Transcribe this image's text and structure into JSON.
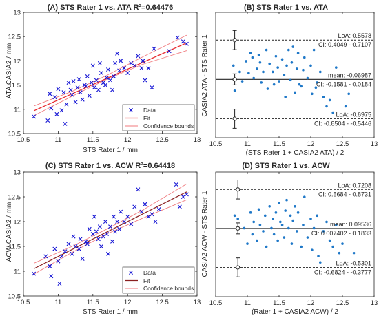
{
  "chart_data": [
    {
      "id": "A",
      "type": "scatter",
      "title": "(A) STS Rater 1 vs. ATA R²=0.64476",
      "xlabel": "STS Rater 1 / mm",
      "ylabel": "ATA CASIA2 / mm",
      "xlim": [
        10.5,
        13
      ],
      "ylim": [
        10.5,
        13
      ],
      "xticks": [
        "10.5",
        "11",
        "11.5",
        "12",
        "12.5",
        "13"
      ],
      "yticks": [
        "10.5",
        "11",
        "11.5",
        "12",
        "12.5",
        "13"
      ],
      "legend": {
        "position": "bottom-right",
        "entries": [
          "Data",
          "Fit",
          "Confidence bounds"
        ]
      },
      "colors": {
        "data": "#1414d4",
        "fit": "#e8252a",
        "bounds": "#f07a7e"
      },
      "fit": {
        "x": [
          10.65,
          12.85
        ],
        "y": [
          10.97,
          12.37
        ]
      },
      "bounds_upper": {
        "x": [
          10.65,
          11.2,
          11.7,
          12.2,
          12.85
        ],
        "y": [
          11.07,
          11.37,
          11.7,
          12.07,
          12.53
        ]
      },
      "bounds_lower": {
        "x": [
          10.65,
          11.2,
          11.7,
          12.2,
          12.85
        ],
        "y": [
          10.87,
          11.27,
          11.62,
          11.92,
          12.21
        ]
      },
      "points": [
        [
          10.65,
          10.85
        ],
        [
          10.85,
          10.77
        ],
        [
          10.88,
          11.32
        ],
        [
          10.9,
          11.02
        ],
        [
          10.95,
          11.25
        ],
        [
          10.98,
          10.9
        ],
        [
          11.0,
          11.42
        ],
        [
          11.05,
          10.98
        ],
        [
          11.08,
          11.35
        ],
        [
          11.1,
          10.7
        ],
        [
          11.12,
          11.1
        ],
        [
          11.15,
          11.55
        ],
        [
          11.18,
          11.4
        ],
        [
          11.2,
          11.3
        ],
        [
          11.22,
          11.58
        ],
        [
          11.25,
          11.15
        ],
        [
          11.28,
          11.45
        ],
        [
          11.3,
          11.62
        ],
        [
          11.32,
          11.35
        ],
        [
          11.35,
          11.2
        ],
        [
          11.38,
          11.5
        ],
        [
          11.4,
          11.48
        ],
        [
          11.42,
          11.68
        ],
        [
          11.45,
          11.28
        ],
        [
          11.48,
          11.55
        ],
        [
          11.5,
          11.9
        ],
        [
          11.52,
          11.45
        ],
        [
          11.55,
          11.6
        ],
        [
          11.58,
          11.4
        ],
        [
          11.6,
          11.95
        ],
        [
          11.62,
          11.75
        ],
        [
          11.65,
          11.55
        ],
        [
          11.68,
          11.5
        ],
        [
          11.7,
          11.65
        ],
        [
          11.72,
          11.82
        ],
        [
          11.75,
          11.6
        ],
        [
          11.78,
          11.4
        ],
        [
          11.8,
          11.68
        ],
        [
          11.82,
          11.95
        ],
        [
          11.85,
          12.15
        ],
        [
          11.88,
          11.8
        ],
        [
          11.9,
          12.0
        ],
        [
          11.95,
          11.85
        ],
        [
          12.0,
          11.75
        ],
        [
          12.05,
          11.95
        ],
        [
          12.1,
          11.9
        ],
        [
          12.15,
          12.1
        ],
        [
          12.2,
          11.85
        ],
        [
          12.22,
          12.0
        ],
        [
          12.25,
          11.6
        ],
        [
          12.3,
          11.85
        ],
        [
          12.35,
          11.45
        ],
        [
          12.38,
          12.25
        ],
        [
          12.6,
          12.2
        ],
        [
          12.72,
          12.48
        ],
        [
          12.8,
          12.4
        ],
        [
          12.85,
          12.35
        ]
      ]
    },
    {
      "id": "B",
      "type": "scatter",
      "title": "(B) STS Rater 1 vs. ATA",
      "xlabel": "(STS Rater 1 + CASIA2 ATA) / 2",
      "ylabel": "CASIA2 ATA - STS Rater 1",
      "xlim": [
        10.5,
        13
      ],
      "ylim": [
        -1,
        1
      ],
      "xticks": [
        "10.5",
        "11",
        "11.5",
        "12",
        "12.5",
        "13"
      ],
      "yticks": [],
      "colors": {
        "data": "#1f78c8",
        "line": "#222222"
      },
      "mean": {
        "value": -0.06987,
        "label": "mean: -0.06987",
        "ci_label": "CI: -0.1581 - 0.0184",
        "ci": [
          -0.1581,
          0.0184
        ]
      },
      "upper_loa": {
        "value": 0.5578,
        "label": "LoA: 0.5578",
        "ci_label": "CI: 0.4049 - 0.7107",
        "ci": [
          0.4049,
          0.7107
        ]
      },
      "lower_loa": {
        "value": -0.6975,
        "label": "LoA: -0.6975",
        "ci_label": "CI: -0.8504 - -0.5446",
        "ci": [
          -0.8504,
          -0.5446
        ]
      },
      "errorbar_x": 10.8,
      "points": [
        [
          10.78,
          0.15
        ],
        [
          10.8,
          -0.25
        ],
        [
          10.88,
          0.05
        ],
        [
          10.92,
          -0.1
        ],
        [
          10.98,
          0.22
        ],
        [
          11.02,
          0.03
        ],
        [
          11.05,
          0.35
        ],
        [
          11.08,
          0.28
        ],
        [
          11.1,
          -0.05
        ],
        [
          11.15,
          0.1
        ],
        [
          11.18,
          0.32
        ],
        [
          11.2,
          0.2
        ],
        [
          11.22,
          -0.12
        ],
        [
          11.25,
          0.05
        ],
        [
          11.3,
          0.4
        ],
        [
          11.32,
          -0.22
        ],
        [
          11.35,
          0.18
        ],
        [
          11.4,
          0.05
        ],
        [
          11.42,
          -0.15
        ],
        [
          11.45,
          0.3
        ],
        [
          11.48,
          0.12
        ],
        [
          11.5,
          -0.1
        ],
        [
          11.55,
          0.25
        ],
        [
          11.58,
          0.0
        ],
        [
          11.6,
          -0.35
        ],
        [
          11.62,
          0.15
        ],
        [
          11.65,
          0.4
        ],
        [
          11.68,
          -0.08
        ],
        [
          11.7,
          0.2
        ],
        [
          11.72,
          0.45
        ],
        [
          11.75,
          -0.28
        ],
        [
          11.78,
          0.1
        ],
        [
          11.8,
          0.35
        ],
        [
          11.82,
          -0.15
        ],
        [
          11.85,
          -0.18
        ],
        [
          11.88,
          0.08
        ],
        [
          11.9,
          0.28
        ],
        [
          11.95,
          -0.05
        ],
        [
          12.0,
          0.15
        ],
        [
          12.02,
          -0.3
        ],
        [
          12.05,
          0.4
        ],
        [
          12.08,
          -0.2
        ],
        [
          12.1,
          -0.12
        ],
        [
          12.15,
          0.05
        ],
        [
          12.2,
          -0.35
        ],
        [
          12.25,
          -0.5
        ],
        [
          12.3,
          -0.4
        ],
        [
          12.35,
          -0.6
        ],
        [
          12.4,
          0.12
        ],
        [
          12.55,
          -0.5
        ],
        [
          12.6,
          -0.3
        ]
      ]
    },
    {
      "id": "C",
      "type": "scatter",
      "title": "(C) STS Rater 1 vs. ACW R²=0.64418",
      "xlabel": "STS Rater 1 / mm",
      "ylabel": "ACW CASIA2 / mm",
      "xlim": [
        10.5,
        13
      ],
      "ylim": [
        10.5,
        13
      ],
      "xticks": [
        "10.5",
        "11",
        "11.5",
        "12",
        "12.5",
        "13"
      ],
      "yticks": [
        "10.5",
        "11",
        "11.5",
        "12",
        "12.5",
        "13"
      ],
      "legend": {
        "position": "bottom-right",
        "entries": [
          "Data",
          "Fit",
          "Confidence bounds"
        ]
      },
      "colors": {
        "data": "#1414d4",
        "fit": "#8b2020",
        "bounds": "#f07a7e"
      },
      "fit": {
        "x": [
          10.65,
          12.85
        ],
        "y": [
          11.05,
          12.6
        ]
      },
      "bounds_upper": {
        "x": [
          10.65,
          11.2,
          11.7,
          12.2,
          12.85
        ],
        "y": [
          11.16,
          11.5,
          11.85,
          12.22,
          12.76
        ]
      },
      "bounds_lower": {
        "x": [
          10.65,
          11.2,
          11.7,
          12.2,
          12.85
        ],
        "y": [
          10.94,
          11.38,
          11.75,
          12.06,
          12.44
        ]
      },
      "points": [
        [
          10.65,
          10.95
        ],
        [
          10.82,
          11.3
        ],
        [
          10.88,
          11.1
        ],
        [
          10.9,
          10.9
        ],
        [
          10.95,
          11.45
        ],
        [
          11.0,
          11.2
        ],
        [
          11.02,
          10.75
        ],
        [
          11.05,
          11.3
        ],
        [
          11.1,
          11.4
        ],
        [
          11.15,
          11.55
        ],
        [
          11.2,
          11.35
        ],
        [
          11.22,
          11.7
        ],
        [
          11.25,
          11.5
        ],
        [
          11.3,
          11.45
        ],
        [
          11.32,
          11.65
        ],
        [
          11.35,
          11.25
        ],
        [
          11.4,
          11.6
        ],
        [
          11.42,
          11.55
        ],
        [
          11.45,
          11.85
        ],
        [
          11.5,
          11.75
        ],
        [
          11.52,
          12.1
        ],
        [
          11.55,
          11.8
        ],
        [
          11.58,
          11.65
        ],
        [
          11.6,
          11.9
        ],
        [
          11.62,
          11.5
        ],
        [
          11.65,
          11.7
        ],
        [
          11.68,
          12.0
        ],
        [
          11.7,
          11.75
        ],
        [
          11.72,
          11.35
        ],
        [
          11.75,
          11.9
        ],
        [
          11.78,
          11.6
        ],
        [
          11.8,
          12.1
        ],
        [
          11.82,
          11.8
        ],
        [
          11.85,
          12.0
        ],
        [
          11.88,
          11.85
        ],
        [
          11.9,
          12.2
        ],
        [
          11.95,
          12.0
        ],
        [
          12.0,
          12.1
        ],
        [
          12.05,
          11.95
        ],
        [
          12.1,
          12.3
        ],
        [
          12.15,
          12.65
        ],
        [
          12.2,
          12.2
        ],
        [
          12.25,
          12.35
        ],
        [
          12.3,
          12.1
        ],
        [
          12.35,
          12.15
        ],
        [
          12.4,
          12.0
        ],
        [
          12.45,
          12.25
        ],
        [
          12.7,
          12.75
        ],
        [
          12.75,
          12.3
        ],
        [
          12.8,
          12.5
        ],
        [
          12.85,
          12.55
        ]
      ]
    },
    {
      "id": "D",
      "type": "scatter",
      "title": "(D) STS Rater 1 vs. ACW",
      "xlabel": "(Rater 1 + CASIA2 ACW) / 2",
      "ylabel": "CASIA2 ACW - STS Rater 1",
      "xlim": [
        10.5,
        13
      ],
      "ylim": [
        -1,
        1
      ],
      "xticks": [
        "10.5",
        "11",
        "11.5",
        "12",
        "12.5",
        "13"
      ],
      "yticks": [],
      "colors": {
        "data": "#1f78c8",
        "line": "#222222"
      },
      "mean": {
        "value": 0.09536,
        "label": "mean: 0.09536",
        "ci_label": "CI: 0.007402 - 0.1833",
        "ci": [
          0.007402,
          0.1833
        ]
      },
      "upper_loa": {
        "value": 0.7208,
        "label": "LoA: 0.7208",
        "ci_label": "CI: 0.5684 - 0.8731",
        "ci": [
          0.5684,
          0.8731
        ]
      },
      "lower_loa": {
        "value": -0.5301,
        "label": "LoA: -0.5301",
        "ci_label": "CI: -0.6824 - -0.3777",
        "ci": [
          -0.6824,
          -0.3777
        ]
      },
      "errorbar_x": 10.85,
      "points": [
        [
          10.8,
          0.3
        ],
        [
          10.85,
          0.25
        ],
        [
          10.95,
          0.1
        ],
        [
          11.0,
          -0.15
        ],
        [
          11.05,
          0.35
        ],
        [
          11.08,
          0.0
        ],
        [
          11.1,
          0.2
        ],
        [
          11.15,
          -0.1
        ],
        [
          11.18,
          0.4
        ],
        [
          11.2,
          0.15
        ],
        [
          11.25,
          0.05
        ],
        [
          11.28,
          0.3
        ],
        [
          11.3,
          -0.2
        ],
        [
          11.35,
          0.45
        ],
        [
          11.38,
          0.1
        ],
        [
          11.4,
          0.25
        ],
        [
          11.42,
          0.0
        ],
        [
          11.45,
          0.35
        ],
        [
          11.48,
          -0.1
        ],
        [
          11.5,
          0.5
        ],
        [
          11.52,
          0.2
        ],
        [
          11.55,
          0.15
        ],
        [
          11.58,
          -0.05
        ],
        [
          11.6,
          0.38
        ],
        [
          11.62,
          0.55
        ],
        [
          11.65,
          0.1
        ],
        [
          11.68,
          0.3
        ],
        [
          11.7,
          -0.15
        ],
        [
          11.72,
          0.22
        ],
        [
          11.75,
          0.45
        ],
        [
          11.78,
          0.05
        ],
        [
          11.8,
          0.35
        ],
        [
          11.85,
          -0.2
        ],
        [
          11.88,
          0.15
        ],
        [
          11.9,
          0.6
        ],
        [
          11.95,
          -0.05
        ],
        [
          12.0,
          0.25
        ],
        [
          12.02,
          -0.25
        ],
        [
          12.05,
          0.1
        ],
        [
          12.1,
          0.3
        ],
        [
          12.12,
          -0.35
        ],
        [
          12.15,
          -0.45
        ],
        [
          12.2,
          0.05
        ],
        [
          12.25,
          0.2
        ],
        [
          12.3,
          -0.1
        ],
        [
          12.35,
          -0.2
        ],
        [
          12.4,
          0.15
        ],
        [
          12.45,
          -0.3
        ],
        [
          12.5,
          -0.15
        ],
        [
          12.68,
          -0.3
        ]
      ]
    }
  ]
}
